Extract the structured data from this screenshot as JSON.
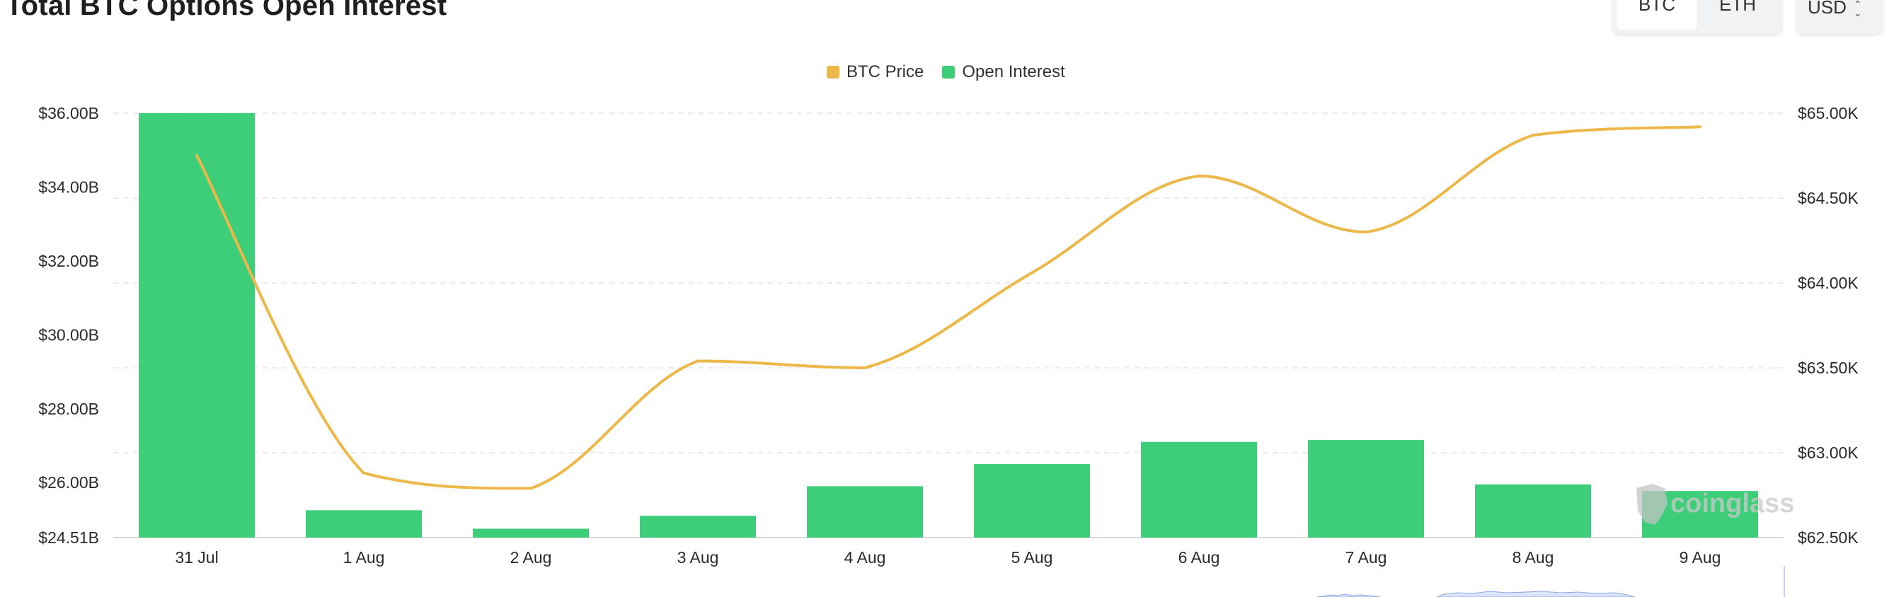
{
  "header": {
    "title": "Total BTC Options Open Interest"
  },
  "controls": {
    "assets": [
      "BTC",
      "ETH"
    ],
    "active_asset": "BTC",
    "currency": "USD"
  },
  "legend": {
    "price_label": "BTC Price",
    "oi_label": "Open Interest"
  },
  "watermark": "coinglass",
  "colors": {
    "price": "#ecb84a",
    "open_interest": "#3ecd79",
    "grid": "#e6e6e6",
    "axis": "#d9d9d9"
  },
  "chart_data": {
    "type": "bar",
    "title": "Total BTC Options Open Interest",
    "categories": [
      "31 Jul",
      "1 Aug",
      "2 Aug",
      "3 Aug",
      "4 Aug",
      "5 Aug",
      "6 Aug",
      "7 Aug",
      "8 Aug",
      "9 Aug"
    ],
    "series": [
      {
        "name": "Open Interest",
        "type": "bar",
        "axis": "left",
        "values": [
          36.0,
          25.25,
          24.75,
          25.1,
          25.9,
          26.5,
          27.1,
          27.15,
          25.95,
          25.77
        ]
      },
      {
        "name": "BTC Price",
        "type": "line",
        "axis": "right",
        "values": [
          64.75,
          62.88,
          62.79,
          63.54,
          63.5,
          64.06,
          64.63,
          64.3,
          64.87,
          64.92
        ]
      }
    ],
    "left_axis": {
      "ticks": [
        "$36.00B",
        "$34.00B",
        "$32.00B",
        "$30.00B",
        "$28.00B",
        "$26.00B",
        "$24.51B"
      ],
      "tick_values": [
        36.0,
        34.0,
        32.0,
        30.0,
        28.0,
        26.0,
        24.51
      ],
      "ylim": [
        24.51,
        36.0
      ]
    },
    "right_axis": {
      "ticks": [
        "$65.00K",
        "$64.50K",
        "$64.00K",
        "$63.50K",
        "$63.00K",
        "$62.50K"
      ],
      "tick_values": [
        65.0,
        64.5,
        64.0,
        63.5,
        63.0,
        62.5
      ],
      "ylim": [
        62.5,
        65.0
      ]
    },
    "grid": true,
    "legend_position": "top-center"
  }
}
